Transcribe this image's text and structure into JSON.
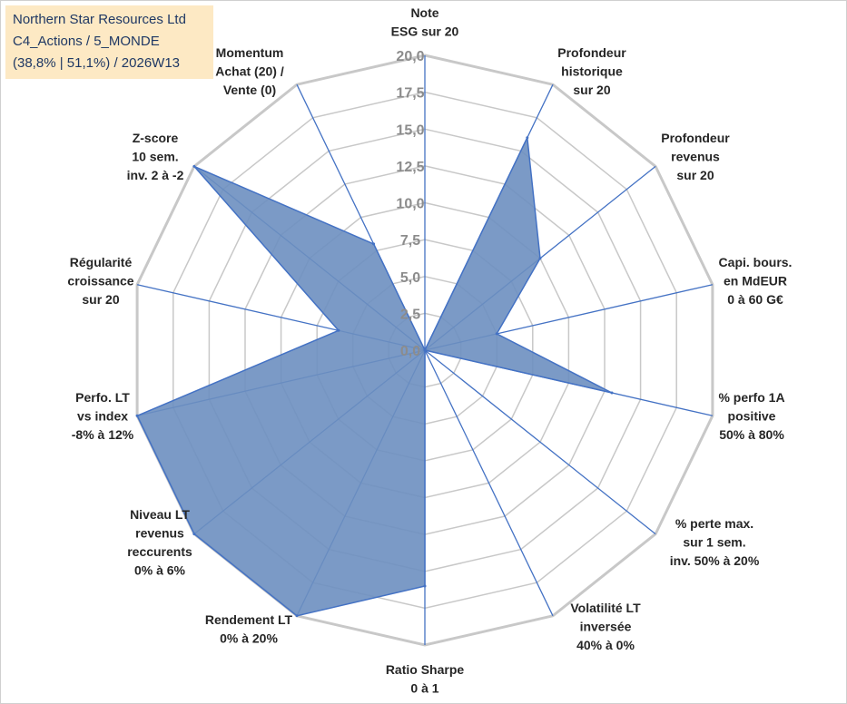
{
  "info": {
    "line1": "Northern Star Resources Ltd",
    "line2": "C4_Actions / 5_MONDE",
    "line3": "(38,8% | 51,1%) / 2026W13"
  },
  "colors": {
    "fill": "#6d8fc0",
    "stroke": "#4472c4",
    "grid": "#c8c8c8",
    "infobox": "#fde9c4"
  },
  "chart_data": {
    "type": "radar",
    "title": "",
    "rmax": 20,
    "ticks": [
      "0,0",
      "2,5",
      "5,0",
      "7,5",
      "10,0",
      "12,5",
      "15,0",
      "17,5",
      "20,0"
    ],
    "categories": [
      {
        "label": [
          "Note",
          "ESG sur 20"
        ],
        "value": 0
      },
      {
        "label": [
          "Profondeur",
          "historique",
          "sur 20"
        ],
        "value": 16
      },
      {
        "label": [
          "Profondeur",
          "revenus",
          "sur 20"
        ],
        "value": 10
      },
      {
        "label": [
          "Capi. bours.",
          "en MdEUR",
          "0 à 60 G€"
        ],
        "value": 5
      },
      {
        "label": [
          "% perfo 1A",
          "positive",
          "50% à 80%"
        ],
        "value": 13
      },
      {
        "label": [
          "% perte max.",
          "sur 1 sem.",
          "inv. 50% à 20%"
        ],
        "value": 0
      },
      {
        "label": [
          "Volatilité LT",
          "inversée",
          "40% à 0%"
        ],
        "value": 0
      },
      {
        "label": [
          "Ratio Sharpe",
          "0 à 1"
        ],
        "value": 16
      },
      {
        "label": [
          "Rendement LT",
          "0% à 20%"
        ],
        "value": 20
      },
      {
        "label": [
          "Niveau LT",
          "revenus",
          "reccurents",
          "0% à 6%"
        ],
        "value": 20
      },
      {
        "label": [
          "Perfo. LT",
          "vs index",
          "-8% à 12%"
        ],
        "value": 20
      },
      {
        "label": [
          "Régularité",
          "croissance",
          "sur 20"
        ],
        "value": 6
      },
      {
        "label": [
          "Z-score",
          "10 sem.",
          "inv. 2 à -2"
        ],
        "value": 20
      },
      {
        "label": [
          "Momentum",
          "Achat (20) /",
          "Vente (0)"
        ],
        "value": 8
      }
    ]
  }
}
